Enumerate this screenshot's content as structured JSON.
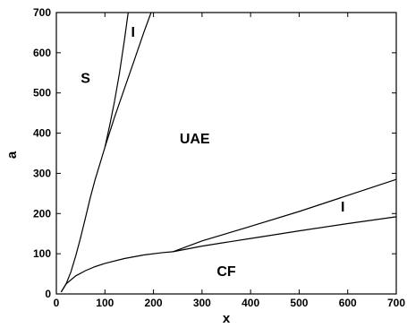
{
  "chart_data": {
    "type": "line",
    "title": "",
    "xlabel": "x",
    "ylabel": "a",
    "xlim": [
      0,
      700
    ],
    "ylim": [
      0,
      700
    ],
    "x_ticks": [
      "0",
      "100",
      "200",
      "300",
      "400",
      "500",
      "600",
      "700"
    ],
    "y_ticks": [
      "0",
      "100",
      "200",
      "300",
      "400",
      "500",
      "600",
      "700"
    ],
    "grid": false,
    "legend": "none",
    "region_labels": [
      {
        "text": "S",
        "x": 60,
        "y": 525
      },
      {
        "text": "I",
        "x": 158,
        "y": 640
      },
      {
        "text": "UAE",
        "x": 285,
        "y": 375
      },
      {
        "text": "I",
        "x": 590,
        "y": 205
      },
      {
        "text": "CF",
        "x": 350,
        "y": 45
      }
    ],
    "series": [
      {
        "x": [
          10,
          20,
          30,
          40,
          50,
          60,
          70,
          80,
          90,
          100
        ],
        "y": [
          5,
          25,
          55,
          95,
          140,
          190,
          240,
          285,
          325,
          365
        ]
      },
      {
        "x": [
          100,
          110,
          120,
          130,
          140,
          148
        ],
        "y": [
          365,
          420,
          480,
          550,
          630,
          700
        ]
      },
      {
        "x": [
          100,
          120,
          140,
          160,
          180,
          195
        ],
        "y": [
          365,
          440,
          510,
          580,
          650,
          700
        ]
      },
      {
        "x": [
          10,
          20,
          40,
          60,
          80,
          100,
          140,
          180,
          220,
          240
        ],
        "y": [
          5,
          25,
          45,
          58,
          68,
          76,
          88,
          97,
          103,
          105
        ]
      },
      {
        "x": [
          240,
          300,
          400,
          500,
          600,
          700
        ],
        "y": [
          105,
          132,
          168,
          205,
          245,
          285
        ]
      },
      {
        "x": [
          240,
          300,
          400,
          500,
          600,
          700
        ],
        "y": [
          105,
          119,
          138,
          157,
          175,
          192
        ]
      }
    ]
  }
}
